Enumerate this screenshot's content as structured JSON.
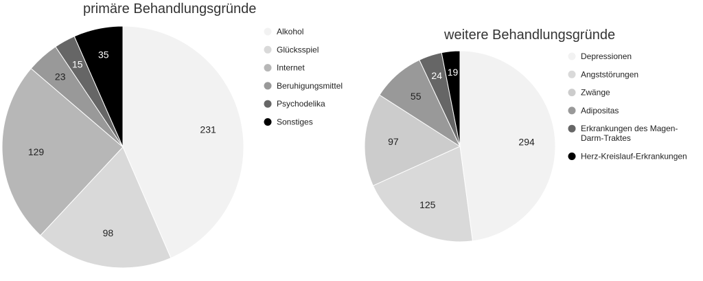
{
  "chart_data": [
    {
      "type": "pie",
      "title": "primäre Behandlungsgründe",
      "categories": [
        "Alkohol",
        "Glücksspiel",
        "Internet",
        "Beruhigungsmittel",
        "Psychodelika",
        "Sonstiges"
      ],
      "values": [
        231,
        98,
        129,
        23,
        15,
        35
      ],
      "colors": [
        "#f2f2f2",
        "#d9d9d9",
        "#b7b7b7",
        "#999999",
        "#666666",
        "#000000"
      ],
      "legend_position": "right",
      "data_labels": true
    },
    {
      "type": "pie",
      "title": "weitere Behandlungsgründe",
      "categories": [
        "Depressionen",
        "Angststörungen",
        "Zwänge",
        "Adipositas",
        "Erkrankungen des Magen-Darm-Traktes",
        "Herz-Kreislauf-Erkrankungen"
      ],
      "legend_lines": [
        [
          "Depressionen"
        ],
        [
          "Angststörungen"
        ],
        [
          "Zwänge"
        ],
        [
          "Adipositas"
        ],
        [
          "Erkrankungen des Magen-",
          "Darm-Traktes"
        ],
        [
          "Herz-Kreislauf-Erkrankungen"
        ]
      ],
      "values": [
        294,
        125,
        97,
        55,
        24,
        19
      ],
      "colors": [
        "#f2f2f2",
        "#d9d9d9",
        "#cccccc",
        "#999999",
        "#666666",
        "#000000"
      ],
      "legend_position": "right",
      "data_labels": true
    }
  ]
}
